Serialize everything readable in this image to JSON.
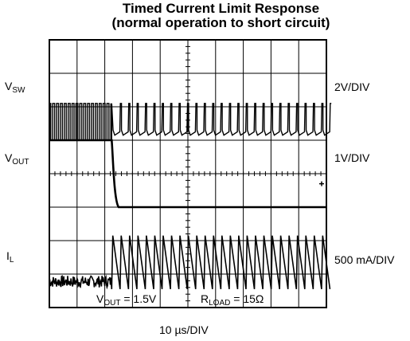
{
  "chart_data": {
    "type": "line",
    "title_line1": "Timed Current Limit Response",
    "title_line2": "(normal operation to short circuit)",
    "grid": true,
    "divisions": {
      "x": 10,
      "y": 8
    },
    "x_scale": {
      "per_div": "10",
      "unit": "µs/DIV"
    },
    "channels": [
      {
        "name": "V",
        "subscript": "SW",
        "scale": "2V/DIV"
      },
      {
        "name": "V",
        "subscript": "OUT",
        "scale": "1V/DIV"
      },
      {
        "name": "I",
        "subscript": "L",
        "scale": "500 mA/DIV"
      }
    ],
    "annotations": [
      {
        "name": "V",
        "subscript": "OUT",
        "text": " = 1.5V"
      },
      {
        "name": "R",
        "subscript": "LOAD",
        "text": " = 15Ω"
      }
    ],
    "series": [
      {
        "name": "VSW",
        "transition_time_div": 2.25,
        "description_values": {
          "pre_high_div": 6.1,
          "low_div": 5.0,
          "post_high_div": 6.1
        }
      },
      {
        "name": "VOUT",
        "values_div": {
          "before": 5.0,
          "after": 3.0
        },
        "step_time_div": 2.25
      },
      {
        "name": "IL",
        "values_div": {
          "before_min": 0.6,
          "before_max": 0.95,
          "peak": 2.15,
          "valley": 0.55
        }
      }
    ],
    "colors": {
      "trace": "#000000",
      "grid": "#000000",
      "background": "#ffffff"
    }
  }
}
